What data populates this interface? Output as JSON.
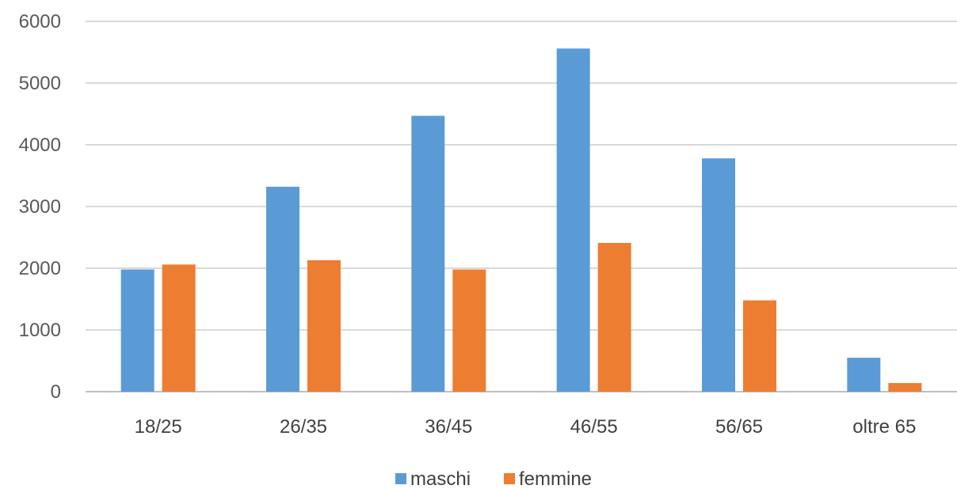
{
  "chart_data": {
    "type": "bar",
    "categories": [
      "18/25",
      "26/35",
      "36/45",
      "46/55",
      "56/65",
      "oltre 65"
    ],
    "series": [
      {
        "name": "maschi",
        "color": "#5B9BD5",
        "values": [
          1980,
          3320,
          4470,
          5560,
          3780,
          550
        ]
      },
      {
        "name": "femmine",
        "color": "#ED7D31",
        "values": [
          2060,
          2130,
          1980,
          2410,
          1480,
          140
        ]
      }
    ],
    "ylim": [
      0,
      6000
    ],
    "yticks": [
      0,
      1000,
      2000,
      3000,
      4000,
      5000,
      6000
    ],
    "grid": true,
    "legend_position": "bottom",
    "title": "",
    "xlabel": "",
    "ylabel": ""
  }
}
